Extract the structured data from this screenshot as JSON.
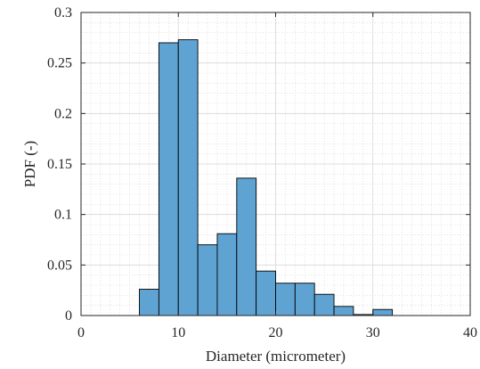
{
  "chart_data": {
    "type": "histogram",
    "xlabel": "Diameter (micrometer)",
    "ylabel": "PDF (-)",
    "xlim": [
      0,
      40
    ],
    "ylim": [
      0,
      0.3
    ],
    "xticks": [
      0,
      10,
      20,
      30,
      40
    ],
    "xtick_labels": [
      "0",
      "10",
      "20",
      "30",
      "40"
    ],
    "yticks": [
      0,
      0.05,
      0.1,
      0.15,
      0.2,
      0.25,
      0.3
    ],
    "ytick_labels": [
      "0",
      "0.05",
      "0.1",
      "0.15",
      "0.2",
      "0.25",
      "0.3"
    ],
    "grid": true,
    "minor_grid": true,
    "bar_color": "#5fa3d3",
    "bar_edge_color": "#000000",
    "bins": [
      {
        "x0": 6,
        "x1": 8,
        "value": 0.026
      },
      {
        "x0": 8,
        "x1": 10,
        "value": 0.27
      },
      {
        "x0": 10,
        "x1": 12,
        "value": 0.273
      },
      {
        "x0": 12,
        "x1": 14,
        "value": 0.07
      },
      {
        "x0": 14,
        "x1": 16,
        "value": 0.081
      },
      {
        "x0": 16,
        "x1": 18,
        "value": 0.136
      },
      {
        "x0": 18,
        "x1": 20,
        "value": 0.044
      },
      {
        "x0": 20,
        "x1": 22,
        "value": 0.032
      },
      {
        "x0": 22,
        "x1": 24,
        "value": 0.032
      },
      {
        "x0": 24,
        "x1": 26,
        "value": 0.021
      },
      {
        "x0": 26,
        "x1": 28,
        "value": 0.009
      },
      {
        "x0": 28,
        "x1": 30,
        "value": 0.001
      },
      {
        "x0": 30,
        "x1": 32,
        "value": 0.006
      }
    ]
  }
}
